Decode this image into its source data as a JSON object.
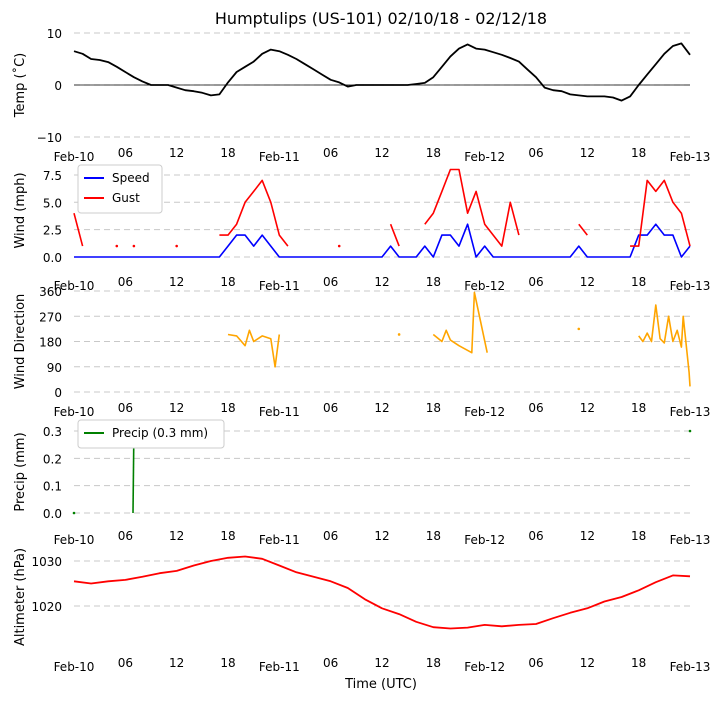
{
  "chart_data": {
    "type": "line",
    "title": "Humptulips (US-101) 02/10/18 - 02/12/18",
    "xlabel": "Time (UTC)",
    "x_ticks": [
      "Feb-10",
      "06",
      "12",
      "18",
      "Feb-11",
      "06",
      "12",
      "18",
      "Feb-12",
      "06",
      "12",
      "18",
      "Feb-13"
    ],
    "x_range_hours": [
      0,
      72
    ],
    "grid": "horizontal dashed",
    "panels": [
      {
        "id": "temp",
        "ylabel": "Temp ($^\\circ$C)",
        "ylabel_text": "Temp (˚C)",
        "ylim": [
          -10,
          10
        ],
        "yticks": [
          10,
          0,
          -10
        ],
        "ytick_labels": [
          "10",
          "0",
          "−10"
        ],
        "zero_line": true,
        "series": [
          {
            "name": "Temp",
            "color": "#000000",
            "hours_step": 1,
            "values": [
              6.5,
              6,
              5,
              4.8,
              4.4,
              3.5,
              2.5,
              1.5,
              0.7,
              0,
              0,
              0,
              -0.5,
              -1,
              -1.2,
              -1.5,
              -2,
              -1.8,
              0.5,
              2.5,
              3.5,
              4.5,
              6,
              6.8,
              6.5,
              5.8,
              5,
              4,
              3,
              2,
              1,
              0.5,
              -0.3,
              0,
              0,
              0,
              0,
              0,
              0,
              0,
              0.2,
              0.4,
              1.5,
              3.5,
              5.5,
              7,
              7.8,
              7,
              6.8,
              6.3,
              5.8,
              5.2,
              4.5,
              3,
              1.5,
              -0.5,
              -1,
              -1.2,
              -1.8,
              -2,
              -2.2,
              -2.2,
              -2.2,
              -2.4,
              -3,
              -2.2,
              0,
              2,
              4,
              6,
              7.5,
              8,
              5.8
            ]
          }
        ]
      },
      {
        "id": "wind",
        "ylabel": "Wind (mph)",
        "ylim": [
          0,
          8.5
        ],
        "yticks": [
          0,
          2.5,
          5,
          7.5
        ],
        "ytick_labels": [
          "0.0",
          "2.5",
          "5.0",
          "7.5"
        ],
        "legend": "upper-left",
        "series": [
          {
            "name": "Speed",
            "color": "#0000ff",
            "hours_step": 1,
            "values": [
              0,
              0,
              0,
              0,
              0,
              0,
              0,
              0,
              0,
              0,
              0,
              0,
              0,
              0,
              0,
              0,
              0,
              0,
              1,
              2,
              2,
              1,
              2,
              1,
              0,
              0,
              0,
              0,
              0,
              0,
              0,
              0,
              0,
              0,
              0,
              0,
              0,
              1,
              0,
              0,
              0,
              1,
              0,
              2,
              2,
              1,
              3,
              0,
              1,
              0,
              0,
              0,
              0,
              0,
              0,
              0,
              0,
              0,
              0,
              1,
              0,
              0,
              0,
              0,
              0,
              0,
              2,
              2,
              3,
              2,
              2,
              0,
              1
            ]
          },
          {
            "name": "Gust",
            "color": "#ff0000",
            "hours_step": 1,
            "values": [
              4,
              1,
              null,
              null,
              null,
              1,
              null,
              1,
              null,
              null,
              null,
              null,
              1,
              null,
              null,
              null,
              null,
              2,
              2,
              3,
              5,
              6,
              7,
              5,
              2,
              1,
              null,
              null,
              null,
              null,
              null,
              1,
              null,
              null,
              null,
              null,
              null,
              3,
              1,
              null,
              null,
              3,
              4,
              6,
              8,
              8,
              4,
              6,
              3,
              2,
              1,
              5,
              2,
              null,
              null,
              null,
              null,
              null,
              null,
              3,
              2,
              null,
              null,
              null,
              null,
              1,
              1,
              7,
              6,
              7,
              5,
              4,
              1
            ]
          }
        ]
      },
      {
        "id": "dir",
        "ylabel": "Wind Direction",
        "ylim": [
          0,
          360
        ],
        "yticks": [
          0,
          90,
          180,
          270,
          360
        ],
        "ytick_labels": [
          "0",
          "90",
          "180",
          "270",
          "360"
        ],
        "series": [
          {
            "name": "Direction",
            "color": "#ffa500",
            "points": [
              [
                18,
                205
              ],
              [
                19,
                200
              ],
              [
                20,
                165
              ],
              [
                20.5,
                220
              ],
              [
                21,
                180
              ],
              [
                22,
                200
              ],
              [
                23,
                190
              ],
              [
                23.5,
                90
              ],
              [
                24,
                205
              ],
              [
                38,
                205
              ],
              [
                42,
                205
              ],
              [
                43,
                180
              ],
              [
                43.5,
                220
              ],
              [
                44,
                185
              ],
              [
                45,
                165
              ],
              [
                46.5,
                140
              ],
              [
                46.8,
                355
              ],
              [
                48.3,
                140
              ],
              [
                59,
                225
              ],
              [
                66,
                200
              ],
              [
                66.5,
                180
              ],
              [
                67,
                210
              ],
              [
                67.5,
                180
              ],
              [
                68,
                310
              ],
              [
                68.5,
                190
              ],
              [
                69,
                175
              ],
              [
                69.5,
                270
              ],
              [
                70,
                180
              ],
              [
                70.5,
                220
              ],
              [
                71,
                160
              ],
              [
                71.2,
                270
              ],
              [
                71.9,
                70
              ],
              [
                72,
                20
              ]
            ]
          }
        ]
      },
      {
        "id": "precip",
        "ylabel": "Precip (mm)",
        "ylim": [
          0,
          0.3
        ],
        "yticks": [
          0,
          0.1,
          0.2,
          0.3
        ],
        "ytick_labels": [
          "0.0",
          "0.1",
          "0.2",
          "0.3"
        ],
        "legend": "upper-left",
        "series": [
          {
            "name": "Precip (0.3 mm)",
            "color": "#008000",
            "points": [
              [
                0,
                0
              ],
              [
                6.9,
                0
              ],
              [
                7,
                0.3
              ],
              [
                72,
                0.3
              ]
            ]
          }
        ]
      },
      {
        "id": "alt",
        "ylabel": "Altimeter (hPa)",
        "ylim": [
          1012,
          1032
        ],
        "yticks": [
          1020,
          1030
        ],
        "ytick_labels": [
          "1020",
          "1030"
        ],
        "series": [
          {
            "name": "Altimeter",
            "color": "#ff0000",
            "hours_step": 2,
            "values": [
              1025.5,
              1025,
              1025.5,
              1025.8,
              1026.5,
              1027.3,
              1027.8,
              1029,
              1030,
              1030.7,
              1031,
              1030.5,
              1029,
              1027.5,
              1026.5,
              1025.5,
              1024,
              1021.5,
              1019.5,
              1018.2,
              1016.5,
              1015.3,
              1015,
              1015.2,
              1015.8,
              1015.5,
              1015.8,
              1016,
              1017.3,
              1018.5,
              1019.5,
              1021,
              1022,
              1023.5,
              1025.3,
              1026.8,
              1026.6
            ]
          }
        ]
      }
    ]
  }
}
